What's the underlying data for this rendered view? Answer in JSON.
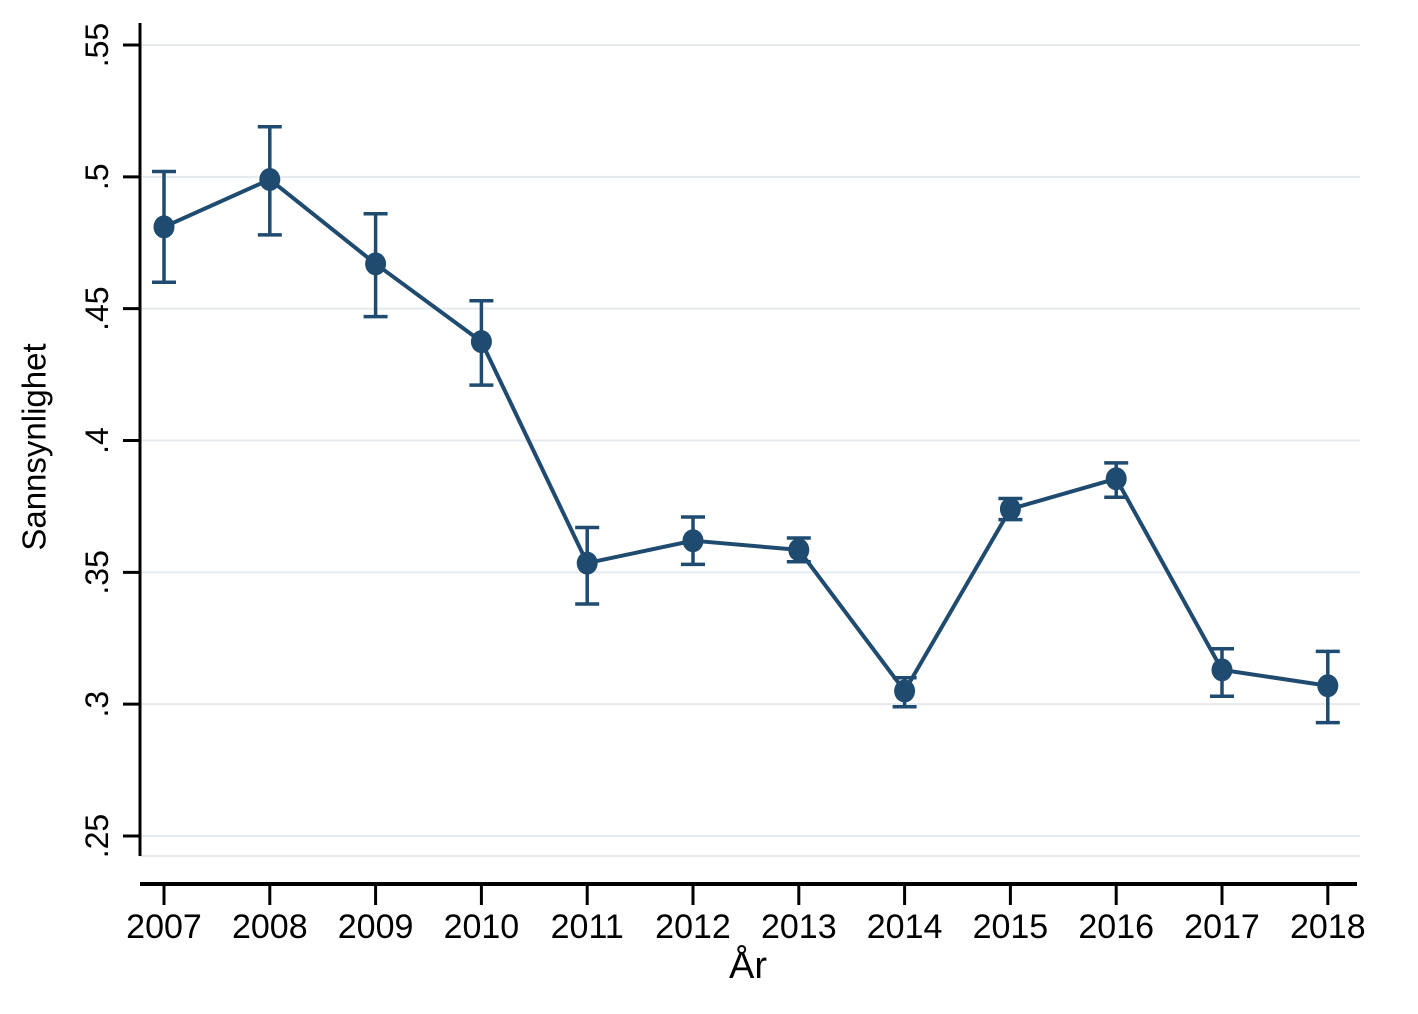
{
  "figure": {
    "background": "#ffffff",
    "accent_color": "#1f4b70",
    "gridline_color": "#e4eaed",
    "axis_color": "#000000",
    "text_color": "#000000"
  },
  "chart_data": {
    "type": "line",
    "title": "",
    "xlabel": "År",
    "ylabel": "Sannsynlighet",
    "categories": [
      "2007",
      "2008",
      "2009",
      "2010",
      "2011",
      "2012",
      "2013",
      "2014",
      "2015",
      "2016",
      "2017",
      "2018"
    ],
    "y_ticks": [
      0.25,
      0.3,
      0.35,
      0.4,
      0.45,
      0.5,
      0.55
    ],
    "y_tick_labels": [
      ".25",
      ".3",
      ".35",
      ".4",
      ".45",
      ".5",
      ".55"
    ],
    "ylim": [
      0.25,
      0.55
    ],
    "grid": "horizontal",
    "legend": "none",
    "marker": "filled-circle",
    "error_bars": true,
    "series": [
      {
        "name": "sannsynlighet",
        "values": [
          0.481,
          0.499,
          0.467,
          0.4375,
          0.3535,
          0.362,
          0.3585,
          0.305,
          0.374,
          0.3855,
          0.313,
          0.307
        ],
        "ci_low": [
          0.46,
          0.478,
          0.447,
          0.421,
          0.338,
          0.353,
          0.354,
          0.299,
          0.37,
          0.3785,
          0.303,
          0.293
        ],
        "ci_high": [
          0.502,
          0.519,
          0.486,
          0.453,
          0.367,
          0.371,
          0.363,
          0.31,
          0.378,
          0.3915,
          0.321,
          0.32
        ]
      }
    ]
  }
}
